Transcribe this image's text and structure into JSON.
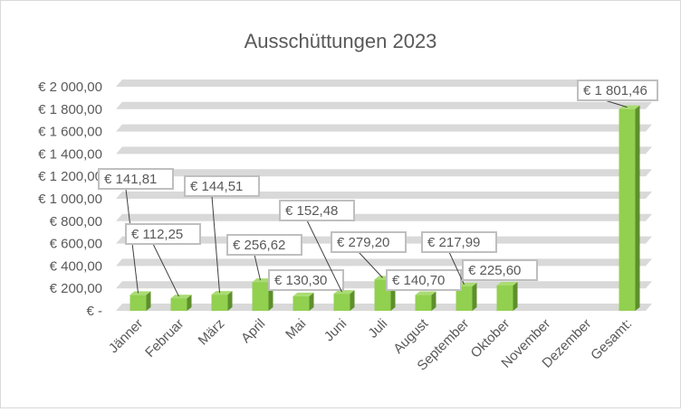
{
  "chart_data": {
    "type": "bar",
    "title": "Ausschüttungen 2023",
    "xlabel": "",
    "ylabel": "",
    "ylim": [
      0,
      2000
    ],
    "y_ticks": [
      0,
      200,
      400,
      600,
      800,
      1000,
      1200,
      1400,
      1600,
      1800,
      2000
    ],
    "y_tick_labels": [
      "€ -",
      "€ 200,00",
      "€ 400,00",
      "€ 600,00",
      "€ 800,00",
      "€ 1 000,00",
      "€ 1 200,00",
      "€ 1 400,00",
      "€ 1 600,00",
      "€ 1 800,00",
      "€ 2 000,00"
    ],
    "categories": [
      "Jänner",
      "Februar",
      "März",
      "April",
      "Mai",
      "Juni",
      "Juli",
      "August",
      "September",
      "Oktober",
      "November",
      "Dezember",
      "Gesamt:"
    ],
    "values": [
      141.81,
      112.25,
      144.51,
      256.62,
      130.3,
      152.48,
      279.2,
      140.7,
      217.99,
      225.6,
      null,
      null,
      1801.46
    ],
    "data_labels": [
      "€  141,81",
      "€  112,25",
      "€  144,51",
      "€  256,62",
      "€  130,30",
      "€  152,48",
      "€  279,20",
      "€  140,70",
      "€  217,99",
      "€  225,60",
      "",
      "",
      "€ 1 801,46"
    ],
    "grid": true,
    "legend": "none",
    "colors": {
      "bar_front": "#92d050",
      "bar_side": "#5e8f2c",
      "bar_top": "#a9dc72",
      "gridband": "#d9d9d9",
      "label_border": "#bfbfbf",
      "text": "#595959"
    }
  }
}
